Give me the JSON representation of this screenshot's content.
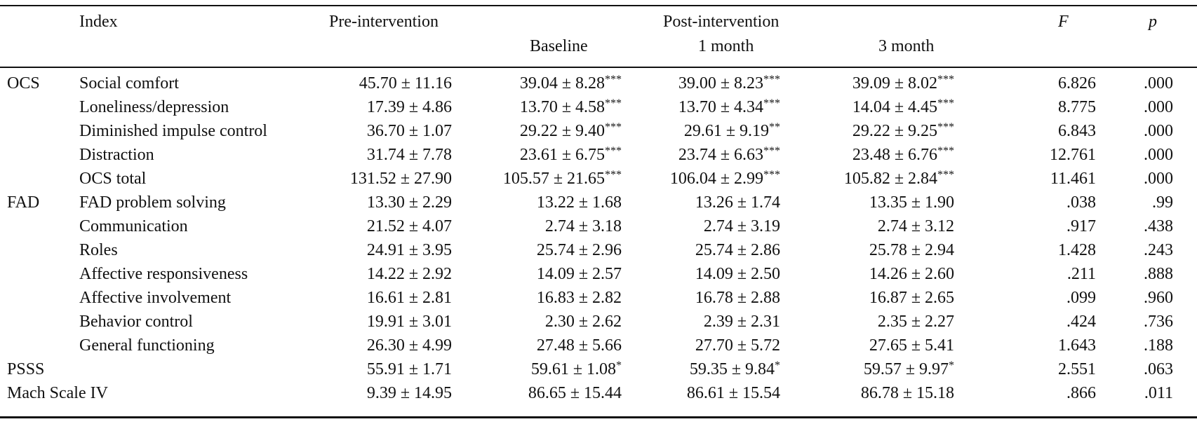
{
  "header": {
    "index": "Index",
    "pre": "Pre-intervention",
    "post": "Post-intervention",
    "baseline": "Baseline",
    "month1": "1 month",
    "month3": "3 month",
    "f": "F",
    "p": "p"
  },
  "rows": [
    {
      "group": "OCS",
      "label": "Social comfort",
      "pre": "45.70 ±  11.16",
      "baseline": "39.04 ± 8.28",
      "baseline_sig": "***",
      "m1": "39.00 ± 8.23",
      "m1_sig": "***",
      "m3": "39.09 ± 8.02",
      "m3_sig": "***",
      "f": "6.826",
      "p": ".000"
    },
    {
      "group": "",
      "label": "Loneliness/depression",
      "pre": "17.39 ± 4.86",
      "baseline": "13.70 ± 4.58",
      "baseline_sig": "***",
      "m1": "13.70 ± 4.34",
      "m1_sig": "***",
      "m3": "14.04 ± 4.45",
      "m3_sig": "***",
      "f": "8.775",
      "p": ".000"
    },
    {
      "group": "",
      "label": "Diminished impulse control",
      "pre": "36.70 ± 1.07",
      "baseline": "29.22 ± 9.40",
      "baseline_sig": "***",
      "m1": "29.61 ± 9.19",
      "m1_sig": "**",
      "m3": "29.22 ± 9.25",
      "m3_sig": "***",
      "f": "6.843",
      "p": ".000"
    },
    {
      "group": "",
      "label": "Distraction",
      "pre": "31.74 ± 7.78",
      "baseline": "23.61 ± 6.75",
      "baseline_sig": "***",
      "m1": "23.74 ± 6.63",
      "m1_sig": "***",
      "m3": "23.48 ± 6.76",
      "m3_sig": "***",
      "f": "12.761",
      "p": ".000"
    },
    {
      "group": "",
      "label": "OCS total",
      "pre": "131.52 ± 27.90",
      "baseline": "105.57 ± 21.65",
      "baseline_sig": "***",
      "m1": "106.04 ± 2.99",
      "m1_sig": "***",
      "m3": "105.82 ± 2.84",
      "m3_sig": "***",
      "f": "11.461",
      "p": ".000"
    },
    {
      "group": "FAD",
      "label": "FAD problem solving",
      "pre": "13.30 ± 2.29",
      "baseline": "13.22 ± 1.68",
      "baseline_sig": "",
      "m1": "13.26 ± 1.74",
      "m1_sig": "",
      "m3": "13.35 ± 1.90",
      "m3_sig": "",
      "f": ".038",
      "p": ".99"
    },
    {
      "group": "",
      "label": "Communication",
      "pre": "21.52 ± 4.07",
      "baseline": "2.74 ± 3.18",
      "baseline_sig": "",
      "m1": "2.74 ± 3.19",
      "m1_sig": "",
      "m3": "2.74 ± 3.12",
      "m3_sig": "",
      "f": ".917",
      "p": ".438"
    },
    {
      "group": "",
      "label": "Roles",
      "pre": "24.91 ± 3.95",
      "baseline": "25.74 ± 2.96",
      "baseline_sig": "",
      "m1": "25.74 ± 2.86",
      "m1_sig": "",
      "m3": "25.78 ± 2.94",
      "m3_sig": "",
      "f": "1.428",
      "p": ".243"
    },
    {
      "group": "",
      "label": "Affective responsiveness",
      "pre": "14.22 ± 2.92",
      "baseline": "14.09 ± 2.57",
      "baseline_sig": "",
      "m1": "14.09 ± 2.50",
      "m1_sig": "",
      "m3": "14.26 ± 2.60",
      "m3_sig": "",
      "f": ".211",
      "p": ".888"
    },
    {
      "group": "",
      "label": "Affective involvement",
      "pre": "16.61 ± 2.81",
      "baseline": "16.83 ± 2.82",
      "baseline_sig": "",
      "m1": "16.78 ± 2.88",
      "m1_sig": "",
      "m3": "16.87 ± 2.65",
      "m3_sig": "",
      "f": ".099",
      "p": ".960"
    },
    {
      "group": "",
      "label": "Behavior control",
      "pre": "19.91 ± 3.01",
      "baseline": "2.30 ± 2.62",
      "baseline_sig": "",
      "m1": "2.39 ± 2.31",
      "m1_sig": "",
      "m3": "2.35 ± 2.27",
      "m3_sig": "",
      "f": ".424",
      "p": ".736"
    },
    {
      "group": "",
      "label": "General functioning",
      "pre": "26.30 ± 4.99",
      "baseline": "27.48 ± 5.66",
      "baseline_sig": "",
      "m1": "27.70 ± 5.72",
      "m1_sig": "",
      "m3": "27.65 ± 5.41",
      "m3_sig": "",
      "f": "1.643",
      "p": ".188"
    },
    {
      "group": "PSSS",
      "label": "",
      "pre": "55.91 ± 1.71",
      "baseline": "59.61 ± 1.08",
      "baseline_sig": "*",
      "m1": "59.35 ± 9.84",
      "m1_sig": "*",
      "m3": "59.57 ± 9.97",
      "m3_sig": "*",
      "f": "2.551",
      "p": ".063"
    },
    {
      "group": "Mach Scale IV",
      "label": "",
      "pre": "9.39 ± 14.95",
      "baseline": "86.65 ± 15.44",
      "baseline_sig": "",
      "m1": "86.61 ± 15.54",
      "m1_sig": "",
      "m3": "86.78 ± 15.18",
      "m3_sig": "",
      "f": ".866",
      "p": ".011"
    }
  ]
}
